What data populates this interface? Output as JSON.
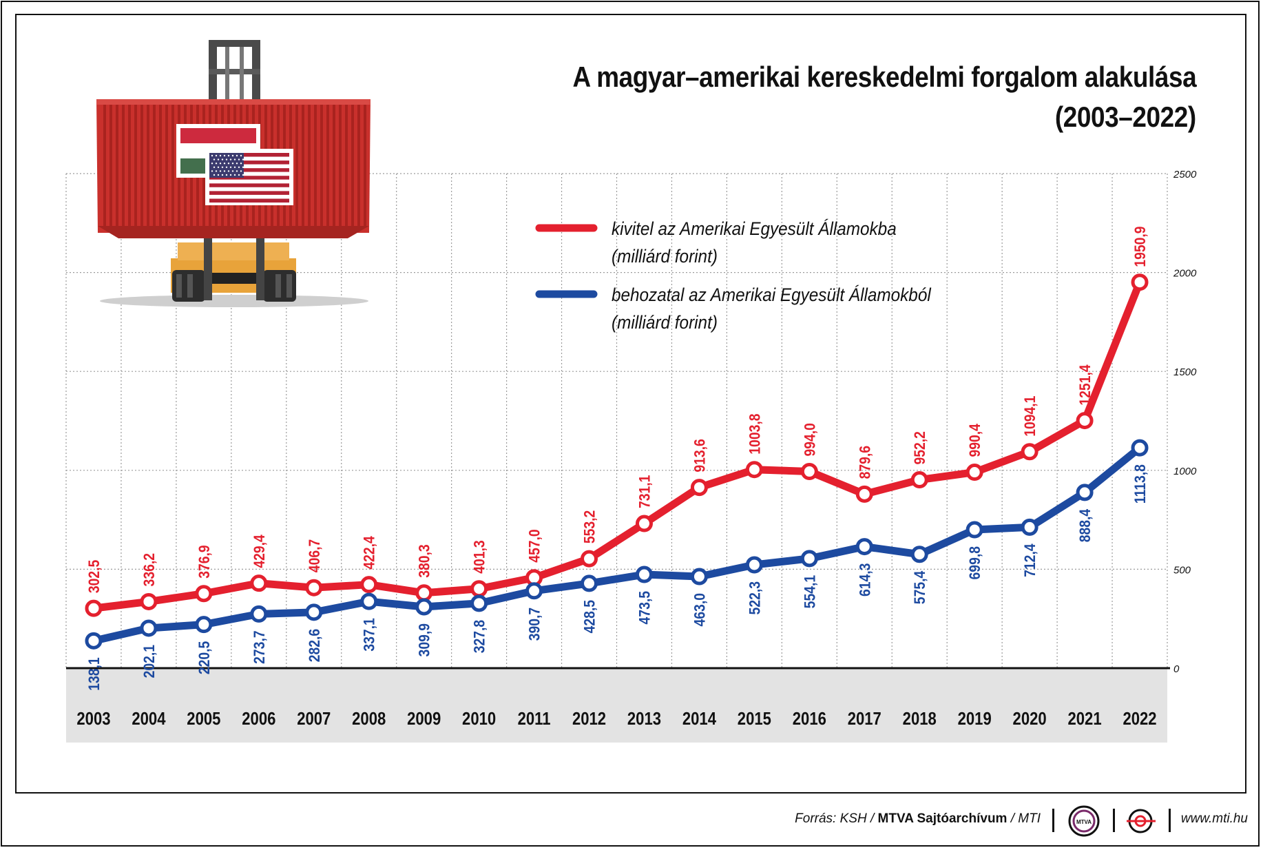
{
  "title": {
    "line1": "A magyar–amerikai kereskedelmi forgalom alakulása",
    "line2": "(2003–2022)"
  },
  "legend": {
    "export_label": "kivitel az Amerikai Egyesült Államokba",
    "export_unit": "(milliárd forint)",
    "import_label": "behozatal az Amerikai Egyesült Államokból",
    "import_unit": "(milliárd forint)"
  },
  "colors": {
    "export": "#e4202e",
    "import": "#1d4aa0",
    "grid": "#9a9a9a",
    "band": "#e3e3e3"
  },
  "footer": {
    "source_prefix": "Forrás: KSH /",
    "source_bold": "MTVA Sajtóarchívum",
    "source_suffix": "/ MTI",
    "logo_text": "MTVA",
    "website": "www.mti.hu"
  },
  "chart_data": {
    "type": "line",
    "title": "A magyar–amerikai kereskedelmi forgalom alakulása (2003–2022)",
    "xlabel": "",
    "ylabel": "milliárd forint",
    "ylim": [
      0,
      2500
    ],
    "yticks": [
      "0",
      "500",
      "1000",
      "1500",
      "2000",
      "2500"
    ],
    "grid": true,
    "legend_position": "top-center",
    "categories": [
      "2003",
      "2004",
      "2005",
      "2006",
      "2007",
      "2008",
      "2009",
      "2010",
      "2011",
      "2012",
      "2013",
      "2014",
      "2015",
      "2016",
      "2017",
      "2018",
      "2019",
      "2020",
      "2021",
      "2022"
    ],
    "series": [
      {
        "name": "kivitel az Amerikai Egyesült Államokba (milliárd forint)",
        "values": [
          302.5,
          336.2,
          376.9,
          429.4,
          406.7,
          422.4,
          380.3,
          401.3,
          457.0,
          553.2,
          731.1,
          913.6,
          1003.8,
          994.0,
          879.6,
          952.2,
          990.4,
          1094.1,
          1251.4,
          1950.9
        ],
        "labels": [
          "302,5",
          "336,2",
          "376,9",
          "429,4",
          "406,7",
          "422,4",
          "380,3",
          "401,3",
          "457,0",
          "553,2",
          "731,1",
          "913,6",
          "1003,8",
          "994,0",
          "879,6",
          "952,2",
          "990,4",
          "1094,1",
          "1251,4",
          "1950,9"
        ]
      },
      {
        "name": "behozatal az Amerikai Egyesült Államokból (milliárd forint)",
        "values": [
          138.1,
          202.1,
          220.5,
          273.7,
          282.6,
          337.1,
          309.9,
          327.8,
          390.7,
          428.5,
          473.5,
          463.0,
          522.3,
          554.1,
          614.3,
          575.4,
          699.8,
          712.4,
          888.4,
          1113.8
        ],
        "labels": [
          "138,1",
          "202,1",
          "220,5",
          "273,7",
          "282,6",
          "337,1",
          "309,9",
          "327,8",
          "390,7",
          "428,5",
          "473,5",
          "463,0",
          "522,3",
          "554,1",
          "614,3",
          "575,4",
          "699,8",
          "712,4",
          "888,4",
          "1113,8"
        ]
      }
    ]
  }
}
